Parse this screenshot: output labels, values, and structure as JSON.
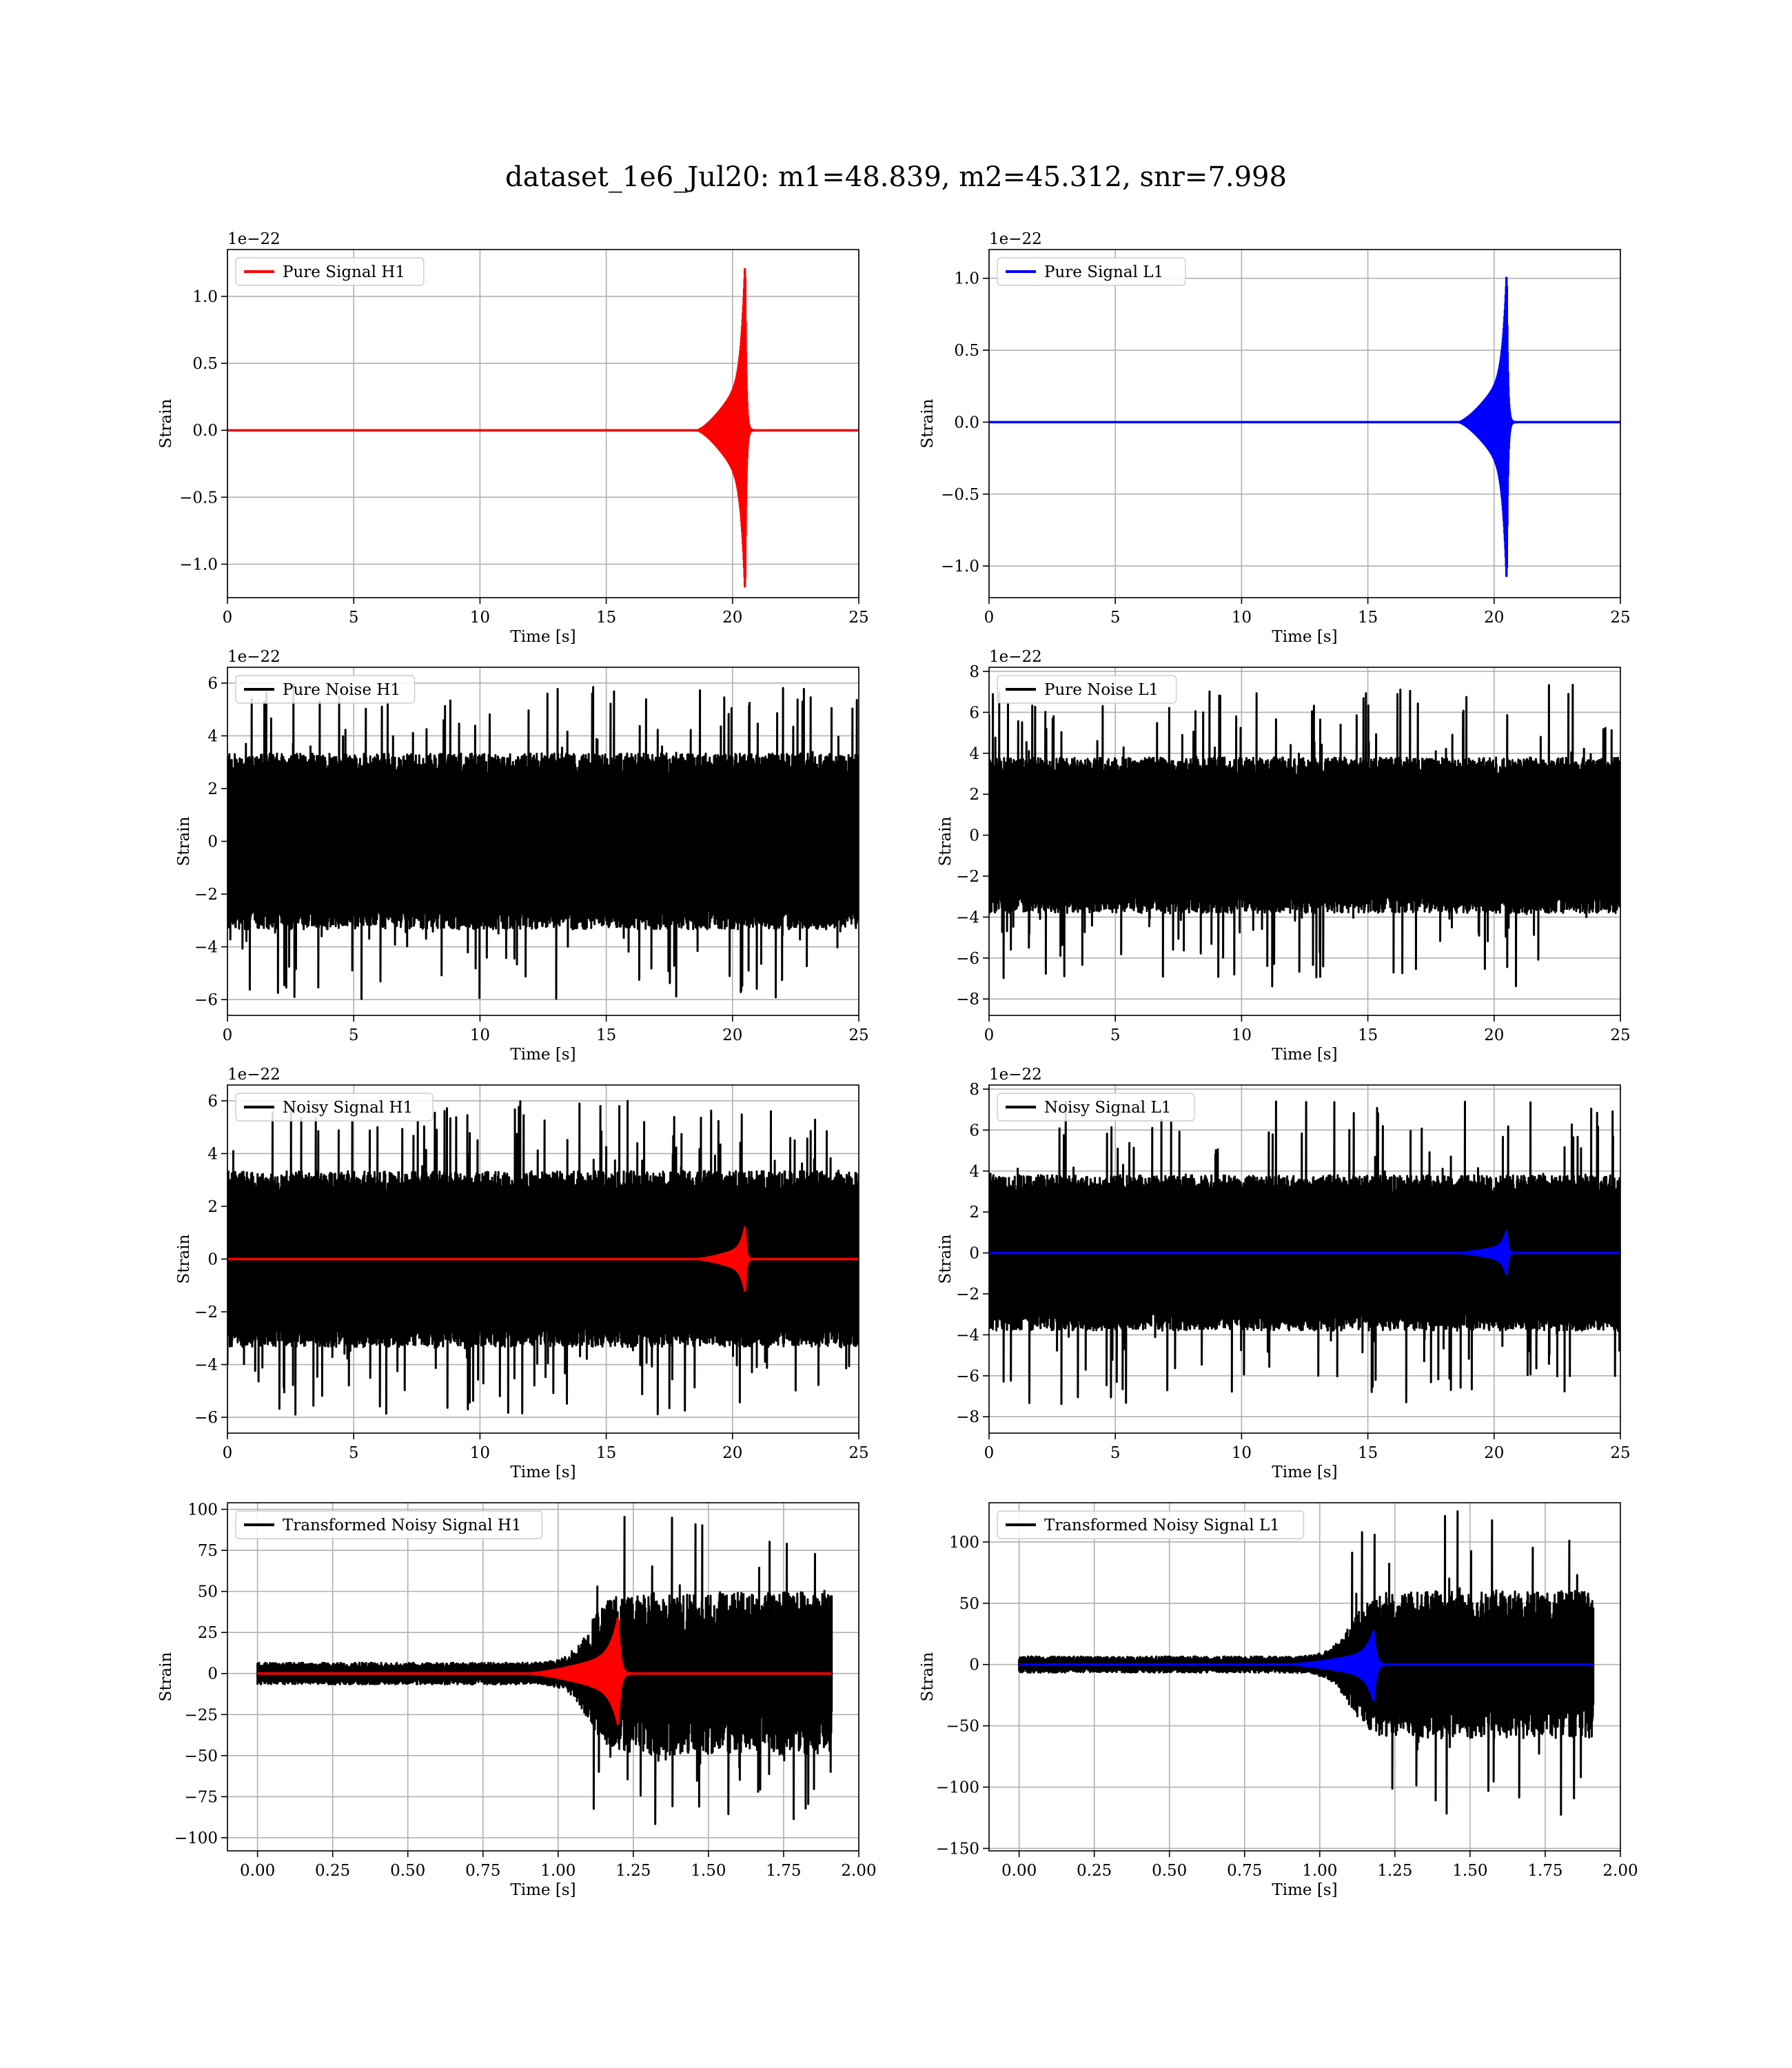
{
  "figure_title": "dataset_1e6_Jul20: m1=48.839, m2=45.312, snr=7.998",
  "colors": {
    "h1_signal": "#ff0000",
    "l1_signal": "#0000ff",
    "noise": "#000000",
    "grid": "#b0b0b0"
  },
  "chart_data": [
    {
      "type": "line",
      "panel": "pure-signal-h1",
      "xlabel": "Time [s]",
      "ylabel": "Strain",
      "offset_text": "1e−22",
      "xlim": [
        0,
        25
      ],
      "ylim": [
        -1.25,
        1.35
      ],
      "xticks": [
        0,
        5,
        10,
        15,
        20,
        25
      ],
      "xtick_labels": [
        "0",
        "5",
        "10",
        "15",
        "20",
        "25"
      ],
      "yticks": [
        -1.0,
        -0.5,
        0.0,
        0.5,
        1.0
      ],
      "ytick_labels": [
        "−1.0",
        "−0.5",
        "0.0",
        "0.5",
        "1.0"
      ],
      "grid": true,
      "legend": "top-left",
      "series": [
        {
          "name": "Pure Signal H1",
          "color": "#ff0000",
          "kind": "chirp",
          "start": 18.6,
          "merger": 20.5,
          "end": 25,
          "peak_pos": 1.26,
          "peak_neg": -1.22,
          "plateau": 0.42
        }
      ]
    },
    {
      "type": "line",
      "panel": "pure-signal-l1",
      "xlabel": "Time [s]",
      "ylabel": "Strain",
      "offset_text": "1e−22",
      "xlim": [
        0,
        25
      ],
      "ylim": [
        -1.22,
        1.2
      ],
      "xticks": [
        0,
        5,
        10,
        15,
        20,
        25
      ],
      "xtick_labels": [
        "0",
        "5",
        "10",
        "15",
        "20",
        "25"
      ],
      "yticks": [
        -1.0,
        -0.5,
        0.0,
        0.5,
        1.0
      ],
      "ytick_labels": [
        "−1.0",
        "−0.5",
        "0.0",
        "0.5",
        "1.0"
      ],
      "grid": true,
      "legend": "top-left",
      "series": [
        {
          "name": "Pure Signal L1",
          "color": "#0000ff",
          "kind": "chirp",
          "start": 18.6,
          "merger": 20.5,
          "end": 25,
          "peak_pos": 1.05,
          "peak_neg": -1.12,
          "plateau": 0.36
        }
      ]
    },
    {
      "type": "line",
      "panel": "pure-noise-h1",
      "xlabel": "Time [s]",
      "ylabel": "Strain",
      "offset_text": "1e−22",
      "xlim": [
        0,
        25
      ],
      "ylim": [
        -6.6,
        6.6
      ],
      "xticks": [
        0,
        5,
        10,
        15,
        20,
        25
      ],
      "xtick_labels": [
        "0",
        "5",
        "10",
        "15",
        "20",
        "25"
      ],
      "yticks": [
        -6,
        -4,
        -2,
        0,
        2,
        4,
        6
      ],
      "ytick_labels": [
        "−6",
        "−4",
        "−2",
        "0",
        "2",
        "4",
        "6"
      ],
      "grid": true,
      "legend": "top-left",
      "series": [
        {
          "name": "Pure Noise H1",
          "color": "#000000",
          "kind": "noise",
          "xmax": 25,
          "band": 2.9,
          "spike": 6.0
        }
      ]
    },
    {
      "type": "line",
      "panel": "pure-noise-l1",
      "xlabel": "Time [s]",
      "ylabel": "Strain",
      "offset_text": "1e−22",
      "xlim": [
        0,
        25
      ],
      "ylim": [
        -8.8,
        8.2
      ],
      "xticks": [
        0,
        5,
        10,
        15,
        20,
        25
      ],
      "xtick_labels": [
        "0",
        "5",
        "10",
        "15",
        "20",
        "25"
      ],
      "yticks": [
        -8,
        -6,
        -4,
        -2,
        0,
        2,
        4,
        6,
        8
      ],
      "ytick_labels": [
        "−8",
        "−6",
        "−4",
        "−2",
        "0",
        "2",
        "4",
        "6",
        "8"
      ],
      "grid": true,
      "legend": "top-left",
      "series": [
        {
          "name": "Pure Noise L1",
          "color": "#000000",
          "kind": "noise",
          "xmax": 25,
          "band": 3.3,
          "spike": 7.4
        }
      ]
    },
    {
      "type": "line",
      "panel": "noisy-signal-h1",
      "xlabel": "Time [s]",
      "ylabel": "Strain",
      "offset_text": "1e−22",
      "xlim": [
        0,
        25
      ],
      "ylim": [
        -6.6,
        6.6
      ],
      "xticks": [
        0,
        5,
        10,
        15,
        20,
        25
      ],
      "xtick_labels": [
        "0",
        "5",
        "10",
        "15",
        "20",
        "25"
      ],
      "yticks": [
        -6,
        -4,
        -2,
        0,
        2,
        4,
        6
      ],
      "ytick_labels": [
        "−6",
        "−4",
        "−2",
        "0",
        "2",
        "4",
        "6"
      ],
      "grid": true,
      "legend": "top-left",
      "series": [
        {
          "name": "Noisy Signal H1",
          "color": "#000000",
          "kind": "noise",
          "xmax": 25,
          "band": 2.9,
          "spike": 6.0
        },
        {
          "color": "#ff0000",
          "kind": "chirp",
          "start": 18.6,
          "merger": 20.5,
          "end": 25,
          "peak_pos": 1.25,
          "peak_neg": -1.25,
          "plateau": 0.45
        }
      ]
    },
    {
      "type": "line",
      "panel": "noisy-signal-l1",
      "xlabel": "Time [s]",
      "ylabel": "Strain",
      "offset_text": "1e−22",
      "xlim": [
        0,
        25
      ],
      "ylim": [
        -8.8,
        8.2
      ],
      "xticks": [
        0,
        5,
        10,
        15,
        20,
        25
      ],
      "xtick_labels": [
        "0",
        "5",
        "10",
        "15",
        "20",
        "25"
      ],
      "yticks": [
        -8,
        -6,
        -4,
        -2,
        0,
        2,
        4,
        6,
        8
      ],
      "ytick_labels": [
        "−8",
        "−6",
        "−4",
        "−2",
        "0",
        "2",
        "4",
        "6",
        "8"
      ],
      "grid": true,
      "legend": "top-left",
      "series": [
        {
          "name": "Noisy Signal L1",
          "color": "#000000",
          "kind": "noise",
          "xmax": 25,
          "band": 3.3,
          "spike": 7.4
        },
        {
          "color": "#0000ff",
          "kind": "chirp",
          "start": 18.6,
          "merger": 20.5,
          "end": 25,
          "peak_pos": 1.1,
          "peak_neg": -1.1,
          "plateau": 0.38
        }
      ]
    },
    {
      "type": "line",
      "panel": "transformed-h1",
      "xlabel": "Time [s]",
      "ylabel": "Strain",
      "offset_text": "",
      "xlim": [
        -0.1,
        2.0
      ],
      "ylim": [
        -108,
        104
      ],
      "xticks": [
        0.0,
        0.25,
        0.5,
        0.75,
        1.0,
        1.25,
        1.5,
        1.75,
        2.0
      ],
      "xtick_labels": [
        "0.00",
        "0.25",
        "0.50",
        "0.75",
        "1.00",
        "1.25",
        "1.50",
        "1.75",
        "2.00"
      ],
      "yticks": [
        -100,
        -75,
        -50,
        -25,
        0,
        25,
        50,
        75,
        100
      ],
      "ytick_labels": [
        "−100",
        "−75",
        "−50",
        "−25",
        "0",
        "25",
        "50",
        "75",
        "100"
      ],
      "grid": true,
      "legend": "top-left",
      "series": [
        {
          "name": "Transformed Noisy Signal H1",
          "color": "#000000",
          "kind": "tnoise",
          "xmax": 1.91,
          "small": 6,
          "big": 45,
          "rise": 1.1,
          "spike": 96
        },
        {
          "color": "#ff0000",
          "kind": "chirp",
          "start": 0.9,
          "merger": 1.2,
          "end": 1.91,
          "peak_pos": 35,
          "peak_neg": -32,
          "plateau": 12
        }
      ]
    },
    {
      "type": "line",
      "panel": "transformed-l1",
      "xlabel": "Time [s]",
      "ylabel": "Strain",
      "offset_text": "",
      "xlim": [
        -0.1,
        2.0
      ],
      "ylim": [
        -152,
        132
      ],
      "xticks": [
        0.0,
        0.25,
        0.5,
        0.75,
        1.0,
        1.25,
        1.5,
        1.75,
        2.0
      ],
      "xtick_labels": [
        "0.00",
        "0.25",
        "0.50",
        "0.75",
        "1.00",
        "1.25",
        "1.50",
        "1.75",
        "2.00"
      ],
      "yticks": [
        -150,
        -100,
        -50,
        0,
        50,
        100
      ],
      "ytick_labels": [
        "−150",
        "−100",
        "−50",
        "0",
        "50",
        "100"
      ],
      "grid": true,
      "legend": "top-left",
      "series": [
        {
          "name": "Transformed Noisy Signal L1",
          "color": "#000000",
          "kind": "tnoise",
          "xmax": 1.91,
          "small": 6,
          "big": 55,
          "rise": 1.1,
          "spike": 128
        },
        {
          "color": "#0000ff",
          "kind": "chirp",
          "start": 0.9,
          "merger": 1.18,
          "end": 1.91,
          "peak_pos": 28,
          "peak_neg": -30,
          "plateau": 10
        }
      ]
    }
  ]
}
